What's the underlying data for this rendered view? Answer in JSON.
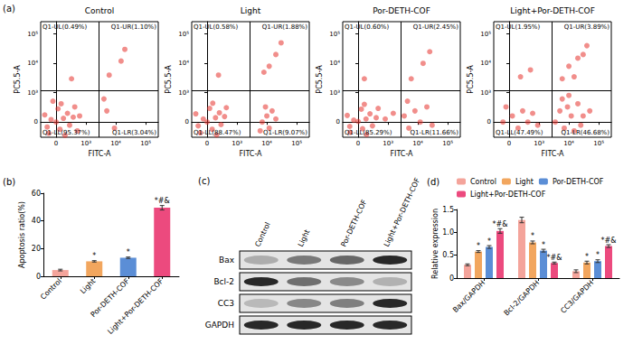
{
  "chart_data": [
    {
      "type": "scatter",
      "panel": "(a)",
      "title": "Control",
      "x_label": "FITC-A",
      "y_label": "PC5.5-A",
      "color": "#e5322b",
      "xlim": [
        -300,
        262144
      ],
      "ylim": [
        -300,
        262144
      ],
      "xticks": [
        0,
        {
          "value": 1000,
          "label": "10³"
        },
        {
          "value": 10000,
          "label": "10⁴"
        },
        {
          "value": 100000,
          "label": "10⁵"
        }
      ],
      "yticks": [
        0,
        {
          "value": 1000,
          "label": "10³"
        },
        {
          "value": 10000,
          "label": "10⁴"
        },
        {
          "value": 100000,
          "label": "10⁵"
        }
      ],
      "gate": {
        "x": 2700,
        "y": 1200
      },
      "quadrants": {
        "UL": "Q1-UL(0.49%)",
        "UR": "Q1-UR(1.10%)",
        "LL": "Q1-LL(95.37%)",
        "LR": "Q1-LR(3.04%)"
      },
      "points": [
        [
          -150,
          -80
        ],
        [
          -80,
          40
        ],
        [
          0,
          0
        ],
        [
          60,
          -120
        ],
        [
          120,
          60
        ],
        [
          200,
          150
        ],
        [
          -200,
          120
        ],
        [
          30,
          250
        ],
        [
          250,
          -50
        ],
        [
          350,
          80
        ],
        [
          -120,
          -200
        ],
        [
          150,
          -250
        ],
        [
          400,
          300
        ],
        [
          80,
          400
        ],
        [
          -50,
          500
        ],
        [
          600,
          100
        ],
        [
          500,
          -150
        ],
        [
          5000,
          200
        ],
        [
          9000,
          -100
        ],
        [
          4000,
          600
        ],
        [
          6000,
          4000
        ],
        [
          15000,
          12000
        ],
        [
          20000,
          30000
        ],
        [
          300,
          3000
        ]
      ]
    },
    {
      "type": "scatter",
      "title": "Light",
      "x_label": "FITC-A",
      "y_label": "PC5.5-A",
      "color": "#e5322b",
      "xlim": [
        -300,
        262144
      ],
      "ylim": [
        -300,
        262144
      ],
      "xticks": [
        0,
        {
          "value": 1000,
          "label": "10³"
        },
        {
          "value": 10000,
          "label": "10⁴"
        },
        {
          "value": 100000,
          "label": "10⁵"
        }
      ],
      "yticks": [
        0,
        {
          "value": 1000,
          "label": "10³"
        },
        {
          "value": 10000,
          "label": "10⁴"
        },
        {
          "value": 100000,
          "label": "10⁵"
        }
      ],
      "gate": {
        "x": 2700,
        "y": 1200
      },
      "quadrants": {
        "UL": "Q1-UL(0.58%)",
        "UR": "Q1-UR(1.88%)",
        "LL": "Q1-LL(88.47%)",
        "LR": "Q1-LR(9.07%)"
      },
      "points": [
        [
          -150,
          -60
        ],
        [
          -60,
          50
        ],
        [
          0,
          0
        ],
        [
          80,
          -120
        ],
        [
          140,
          70
        ],
        [
          220,
          160
        ],
        [
          -200,
          140
        ],
        [
          40,
          260
        ],
        [
          260,
          -40
        ],
        [
          360,
          90
        ],
        [
          -110,
          -190
        ],
        [
          160,
          -240
        ],
        [
          420,
          280
        ],
        [
          90,
          420
        ],
        [
          7000,
          0
        ],
        [
          10000,
          100
        ],
        [
          12000,
          -100
        ],
        [
          9000,
          300
        ],
        [
          15000,
          200
        ],
        [
          6000,
          -150
        ],
        [
          20000,
          50
        ],
        [
          8000,
          5000
        ],
        [
          20000,
          20000
        ],
        [
          12000,
          8000
        ],
        [
          30000,
          50000
        ],
        [
          200,
          4000
        ]
      ]
    },
    {
      "type": "scatter",
      "title": "Por-DETH-COF",
      "x_label": "FITC-A",
      "y_label": "PC5.5-A",
      "color": "#e5322b",
      "xlim": [
        -300,
        262144
      ],
      "ylim": [
        -300,
        262144
      ],
      "xticks": [
        0,
        {
          "value": 1000,
          "label": "10³"
        },
        {
          "value": 10000,
          "label": "10⁴"
        },
        {
          "value": 100000,
          "label": "10⁵"
        }
      ],
      "yticks": [
        0,
        {
          "value": 1000,
          "label": "10³"
        },
        {
          "value": 10000,
          "label": "10⁴"
        },
        {
          "value": 100000,
          "label": "10⁵"
        }
      ],
      "gate": {
        "x": 2700,
        "y": 1200
      },
      "quadrants": {
        "UL": "Q1-UL(0.60%)",
        "UR": "Q1-UR(2.45%)",
        "LL": "Q1-LL(85.29%)",
        "LR": "Q1-LR(11.66%)"
      },
      "points": [
        [
          -140,
          -70
        ],
        [
          -70,
          30
        ],
        [
          0,
          10
        ],
        [
          70,
          -110
        ],
        [
          130,
          50
        ],
        [
          210,
          140
        ],
        [
          -190,
          110
        ],
        [
          50,
          240
        ],
        [
          270,
          -60
        ],
        [
          380,
          70
        ],
        [
          -130,
          -180
        ],
        [
          140,
          -230
        ],
        [
          450,
          260
        ],
        [
          100,
          380
        ],
        [
          800,
          50
        ],
        [
          1500,
          150
        ],
        [
          3500,
          100
        ],
        [
          5000,
          -100
        ],
        [
          8000,
          200
        ],
        [
          12000,
          0
        ],
        [
          20000,
          300
        ],
        [
          4500,
          500
        ],
        [
          30000,
          -50
        ],
        [
          6000,
          3000
        ],
        [
          15000,
          10000
        ],
        [
          25000,
          25000
        ],
        [
          100,
          3000
        ]
      ]
    },
    {
      "type": "scatter",
      "title": "Light+Por-DETH-COF",
      "x_label": "FITC-A",
      "y_label": "PC5.5-A",
      "color": "#e5322b",
      "xlim": [
        -300,
        262144
      ],
      "ylim": [
        -300,
        262144
      ],
      "xticks": [
        0,
        {
          "value": 1000,
          "label": "10³"
        },
        {
          "value": 10000,
          "label": "10⁴"
        },
        {
          "value": 100000,
          "label": "10⁵"
        }
      ],
      "yticks": [
        0,
        {
          "value": 1000,
          "label": "10³"
        },
        {
          "value": 10000,
          "label": "10⁴"
        },
        {
          "value": 100000,
          "label": "10⁵"
        }
      ],
      "gate": {
        "x": 2700,
        "y": 1200
      },
      "quadrants": {
        "UL": "Q1-UL(1.95%)",
        "UR": "Q1-UR(3.89%)",
        "LL": "Q1-LL(47.49%)",
        "LR": "Q1-LR(46.68%)"
      },
      "points": [
        [
          -100,
          0
        ],
        [
          50,
          100
        ],
        [
          150,
          -100
        ],
        [
          250,
          200
        ],
        [
          400,
          0
        ],
        [
          600,
          150
        ],
        [
          900,
          -50
        ],
        [
          -50,
          300
        ],
        [
          3500,
          0
        ],
        [
          5000,
          200
        ],
        [
          7000,
          -100
        ],
        [
          9000,
          300
        ],
        [
          12000,
          100
        ],
        [
          15000,
          -150
        ],
        [
          20000,
          400
        ],
        [
          30000,
          100
        ],
        [
          50000,
          200
        ],
        [
          6000,
          600
        ],
        [
          10000,
          800
        ],
        [
          25000,
          -50
        ],
        [
          6000,
          3000
        ],
        [
          10000,
          8000
        ],
        [
          20000,
          15000
        ],
        [
          40000,
          40000
        ],
        [
          15000,
          3500
        ],
        [
          30000,
          20000
        ],
        [
          200,
          3500
        ],
        [
          500,
          6000
        ]
      ]
    },
    {
      "type": "bar",
      "panel": "(b)",
      "y_label": "Apoptosis ratio(%)",
      "categories": [
        "Control",
        "Light",
        "Por-DETH-COF",
        "Light+Por-DETH-COF"
      ],
      "values": [
        4.5,
        10.8,
        13.4,
        49.5
      ],
      "errors": [
        0.6,
        0.5,
        0.5,
        1.6
      ],
      "significance": [
        null,
        "*",
        "*",
        "*#&"
      ],
      "colors": [
        "#f4a49b",
        "#f2a65e",
        "#5b8ed6",
        "#ec4a7e"
      ],
      "ylim": [
        0,
        60
      ],
      "yticks": [
        0,
        20,
        40,
        60
      ],
      "grid": false
    },
    {
      "type": "bar",
      "panel": "(d)",
      "y_label": "Relative expression",
      "categories": [
        "Bax/GAPDH",
        "Bcl-2/GAPDH",
        "CC3/GAPDH"
      ],
      "series": [
        {
          "name": "Control",
          "color": "#f4a49b",
          "values": [
            0.29,
            1.27,
            0.15
          ],
          "errors": [
            0.02,
            0.06,
            0.03
          ],
          "significance": [
            null,
            null,
            null
          ]
        },
        {
          "name": "Light",
          "color": "#f2a65e",
          "values": [
            0.58,
            0.78,
            0.34
          ],
          "errors": [
            0.02,
            0.03,
            0.03
          ],
          "significance": [
            "*",
            "*",
            "*"
          ]
        },
        {
          "name": "Por-DETH-COF",
          "color": "#5b8ed6",
          "values": [
            0.68,
            0.6,
            0.37
          ],
          "errors": [
            0.03,
            0.03,
            0.03
          ],
          "significance": [
            "*",
            "*",
            "*"
          ]
        },
        {
          "name": "Light+Por-DETH-COF",
          "color": "#ec4a7e",
          "values": [
            1.03,
            0.33,
            0.7
          ],
          "errors": [
            0.05,
            0.02,
            0.03
          ],
          "significance": [
            "*#&",
            "*#&",
            "*#&"
          ]
        }
      ],
      "ylim": [
        0,
        1.5
      ],
      "yticks": [
        0,
        0.5,
        {
          "value": 1,
          "label": "1.0"
        },
        1.5
      ],
      "legend": "top",
      "grid": false
    }
  ],
  "blot": {
    "panel": "(c)",
    "columns": [
      "Control",
      "Light",
      "Por-DETH-COF",
      "Light+Por-DETH-COF"
    ],
    "rows": [
      "Bax",
      "Bcl-2",
      "CC3",
      "GAPDH"
    ]
  }
}
